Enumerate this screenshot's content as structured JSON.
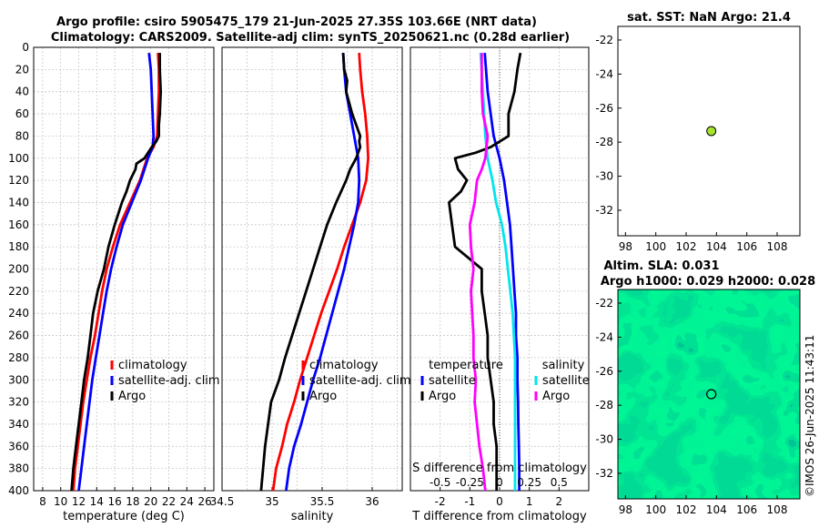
{
  "title": {
    "line1": "Argo profile: csiro 5905475_179 21-Jun-2025 27.35S 103.66E (NRT data)",
    "line2": "Climatology: CARS2009. Satellite-adj clim: synTS_20250621.nc (0.28d earlier)"
  },
  "watermark": "©IMOS 26-Jun-2025 11:43:11",
  "colors": {
    "climatology": "#ff0000",
    "satellite": "#0000ff",
    "argo": "#000000",
    "salinity_satellite": "#00e5ee",
    "salinity_argo": "#ff00ff"
  },
  "chart_data": [
    {
      "id": "temperature",
      "type": "line",
      "xlabel": "temperature (deg C)",
      "ylabel": "",
      "xlim": [
        7,
        27
      ],
      "ylim": [
        400,
        0
      ],
      "xticks": [
        8,
        10,
        12,
        14,
        16,
        18,
        20,
        22,
        24,
        26
      ],
      "yticks": [
        0,
        20,
        40,
        60,
        80,
        100,
        120,
        140,
        160,
        180,
        200,
        220,
        240,
        260,
        280,
        300,
        320,
        340,
        360,
        380,
        400
      ],
      "legend": [
        "climatology",
        "satellite-adj. clim",
        "Argo"
      ],
      "series": [
        {
          "name": "climatology",
          "color": "#ff0000",
          "depth": [
            5,
            20,
            40,
            60,
            80,
            90,
            100,
            120,
            140,
            160,
            180,
            200,
            220,
            240,
            260,
            280,
            300,
            320,
            340,
            360,
            380,
            400
          ],
          "values": [
            20.8,
            20.9,
            20.9,
            20.8,
            20.7,
            20.3,
            19.6,
            18.8,
            17.7,
            16.6,
            15.8,
            15.1,
            14.6,
            14.2,
            13.8,
            13.3,
            12.9,
            12.5,
            12.2,
            11.9,
            11.6,
            11.4
          ]
        },
        {
          "name": "satellite-adj. clim",
          "color": "#0000ff",
          "depth": [
            5,
            20,
            40,
            60,
            80,
            90,
            100,
            120,
            140,
            160,
            180,
            200,
            220,
            240,
            260,
            280,
            300,
            320,
            340,
            360,
            380,
            400
          ],
          "values": [
            19.8,
            20.0,
            20.1,
            20.2,
            20.3,
            20.2,
            19.7,
            18.9,
            17.9,
            16.9,
            16.2,
            15.6,
            15.1,
            14.7,
            14.3,
            13.9,
            13.5,
            13.2,
            12.9,
            12.6,
            12.3,
            12.0
          ]
        },
        {
          "name": "Argo",
          "color": "#000000",
          "depth": [
            5,
            20,
            40,
            60,
            70,
            80,
            85,
            90,
            100,
            105,
            110,
            120,
            130,
            140,
            160,
            180,
            200,
            220,
            240,
            260,
            280,
            300,
            320,
            340,
            360,
            380,
            400
          ],
          "values": [
            21.0,
            21.0,
            21.1,
            21.0,
            20.9,
            20.9,
            20.6,
            20.1,
            19.3,
            18.4,
            18.3,
            17.7,
            17.3,
            16.8,
            16.0,
            15.3,
            14.8,
            14.1,
            13.6,
            13.3,
            13.0,
            12.6,
            12.3,
            12.0,
            11.7,
            11.4,
            11.2
          ]
        }
      ]
    },
    {
      "id": "salinity",
      "type": "line",
      "xlabel": "salinity",
      "ylabel": "",
      "xlim": [
        34.5,
        36.3
      ],
      "ylim": [
        400,
        0
      ],
      "xticks": [
        34.5,
        35,
        35.5,
        36
      ],
      "xtick_labels": [
        "34.5",
        "35",
        "35.5",
        "36"
      ],
      "legend": [
        "climatology",
        "satellite-adj. clim",
        "Argo"
      ],
      "series": [
        {
          "name": "climatology",
          "color": "#ff0000",
          "depth": [
            5,
            20,
            40,
            60,
            80,
            100,
            120,
            140,
            160,
            180,
            200,
            220,
            240,
            260,
            280,
            300,
            320,
            340,
            360,
            380,
            400
          ],
          "values": [
            35.87,
            35.88,
            35.9,
            35.93,
            35.95,
            35.96,
            35.94,
            35.88,
            35.8,
            35.72,
            35.65,
            35.57,
            35.49,
            35.42,
            35.35,
            35.28,
            35.22,
            35.15,
            35.1,
            35.04,
            35.01
          ]
        },
        {
          "name": "satellite-adj. clim",
          "color": "#0000ff",
          "depth": [
            5,
            20,
            40,
            60,
            80,
            100,
            120,
            140,
            160,
            180,
            200,
            220,
            240,
            260,
            280,
            300,
            320,
            340,
            360,
            380,
            400
          ],
          "values": [
            35.71,
            35.72,
            35.74,
            35.78,
            35.82,
            35.86,
            35.87,
            35.86,
            35.82,
            35.77,
            35.72,
            35.66,
            35.6,
            35.54,
            35.48,
            35.41,
            35.35,
            35.29,
            35.22,
            35.17,
            35.14
          ]
        },
        {
          "name": "Argo",
          "color": "#000000",
          "depth": [
            5,
            20,
            30,
            40,
            50,
            60,
            70,
            80,
            85,
            90,
            95,
            100,
            110,
            120,
            140,
            160,
            180,
            200,
            220,
            240,
            260,
            280,
            300,
            320,
            340,
            360,
            380,
            400
          ],
          "values": [
            35.71,
            35.72,
            35.75,
            35.74,
            35.77,
            35.8,
            35.84,
            35.88,
            35.87,
            35.88,
            35.86,
            35.84,
            35.78,
            35.74,
            35.64,
            35.55,
            35.48,
            35.41,
            35.34,
            35.27,
            35.2,
            35.13,
            35.07,
            34.99,
            34.96,
            34.93,
            34.91,
            34.89
          ]
        }
      ]
    },
    {
      "id": "difference",
      "type": "line",
      "xlabel": "T difference from climatology",
      "xlabel_top": "S difference from climatology",
      "xlim": [
        -3,
        3
      ],
      "ylim": [
        400,
        0
      ],
      "xticks": [
        -2,
        -1,
        0,
        1,
        2
      ],
      "xticks_s": [
        -0.5,
        -0.25,
        0,
        0.25,
        0.5
      ],
      "xticks_s_labels": [
        "-0.5",
        "-0.25",
        "0",
        "0.25",
        "0.5"
      ],
      "legend_temperature_title": "temperature",
      "legend_salinity_title": "salinity",
      "legend": [
        "satellite",
        "Argo",
        "satellite",
        "Argo"
      ],
      "series": [
        {
          "name": "temperature satellite",
          "color": "#0000ff",
          "depth": [
            5,
            40,
            80,
            100,
            120,
            140,
            160,
            180,
            200,
            220,
            240,
            260,
            280,
            300,
            320,
            340,
            360,
            380,
            400
          ],
          "values": [
            -0.5,
            -0.4,
            -0.2,
            0.0,
            0.15,
            0.25,
            0.35,
            0.4,
            0.45,
            0.5,
            0.55,
            0.55,
            0.6,
            0.6,
            0.62,
            0.63,
            0.65,
            0.66,
            0.66
          ]
        },
        {
          "name": "temperature Argo",
          "color": "#000000",
          "depth": [
            5,
            20,
            40,
            60,
            80,
            90,
            95,
            100,
            110,
            120,
            130,
            140,
            160,
            180,
            200,
            220,
            240,
            260,
            280,
            300,
            320,
            340,
            360,
            380,
            400
          ],
          "values": [
            0.7,
            0.6,
            0.5,
            0.3,
            0.3,
            -0.3,
            -0.8,
            -1.5,
            -1.4,
            -1.1,
            -1.3,
            -1.7,
            -1.6,
            -1.5,
            -0.6,
            -0.6,
            -0.5,
            -0.4,
            -0.4,
            -0.3,
            -0.2,
            -0.2,
            -0.1,
            -0.1,
            -0.1
          ]
        },
        {
          "name": "salinity satellite",
          "color": "#00e5ee",
          "depth": [
            5,
            40,
            80,
            100,
            120,
            140,
            160,
            180,
            200,
            220,
            240,
            260,
            280,
            300,
            320,
            340,
            360,
            380,
            400
          ],
          "values": [
            -0.16,
            -0.14,
            -0.12,
            -0.1,
            -0.06,
            -0.03,
            0.02,
            0.05,
            0.07,
            0.09,
            0.11,
            0.12,
            0.13,
            0.13,
            0.13,
            0.13,
            0.13,
            0.13,
            0.13
          ]
        },
        {
          "name": "salinity Argo",
          "color": "#ff00ff",
          "depth": [
            5,
            20,
            40,
            60,
            80,
            100,
            110,
            120,
            140,
            160,
            180,
            200,
            220,
            240,
            260,
            280,
            300,
            320,
            340,
            360,
            380,
            400
          ],
          "values": [
            -0.15,
            -0.15,
            -0.15,
            -0.14,
            -0.1,
            -0.12,
            -0.15,
            -0.19,
            -0.21,
            -0.25,
            -0.24,
            -0.22,
            -0.24,
            -0.23,
            -0.22,
            -0.22,
            -0.2,
            -0.21,
            -0.19,
            -0.17,
            -0.14,
            -0.12
          ]
        }
      ]
    },
    {
      "id": "sst_map",
      "type": "scatter",
      "title": "sat. SST: NaN Argo: 21.4",
      "xlim": [
        97.5,
        109.5
      ],
      "ylim": [
        -33.5,
        -21.2
      ],
      "xticks": [
        98,
        100,
        102,
        104,
        106,
        108
      ],
      "yticks": [
        -22,
        -24,
        -26,
        -28,
        -30,
        -32
      ],
      "point": {
        "lon": 103.66,
        "lat": -27.35,
        "color": "#a6e22e"
      }
    },
    {
      "id": "sla_map",
      "type": "heatmap",
      "title_line1": "Altim. SLA: 0.031",
      "title_line2": "Argo h1000: 0.029 h2000: 0.028",
      "xlim": [
        97.5,
        109.5
      ],
      "ylim": [
        -33.5,
        -21.2
      ],
      "xticks": [
        98,
        100,
        102,
        104,
        106,
        108
      ],
      "yticks": [
        -22,
        -24,
        -26,
        -28,
        -30,
        -32
      ],
      "point": {
        "lon": 103.66,
        "lat": -27.35
      }
    }
  ]
}
